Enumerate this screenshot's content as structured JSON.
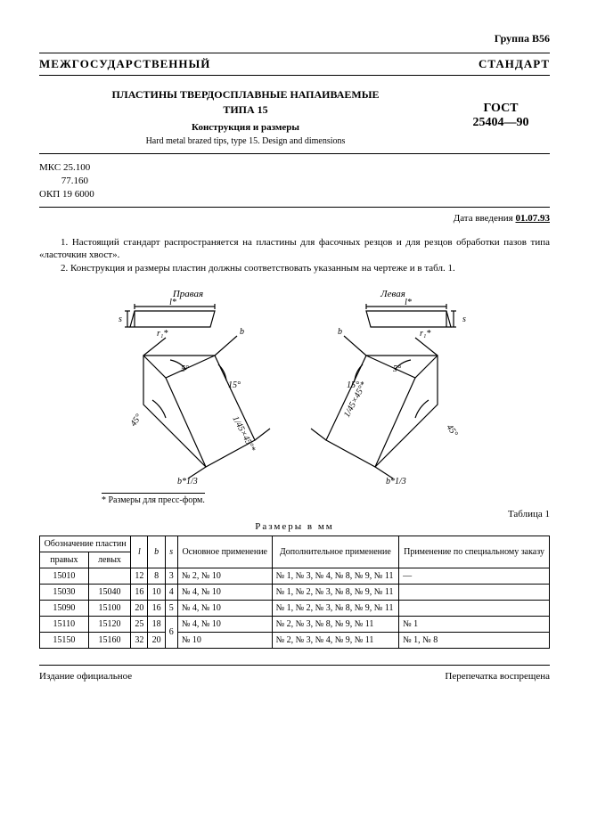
{
  "group_label": "Группа В56",
  "banner": "МЕЖГОСУДАРСТВЕННЫЙ СТАНДАРТ",
  "header": {
    "title_main": "ПЛАСТИНЫ ТВЕРДОСПЛАВНЫЕ НАПАИВАЕМЫЕ",
    "title_type": "ТИПА 15",
    "subtitle_ru": "Конструкция и размеры",
    "subtitle_en": "Hard metal brazed tips, type 15. Design and dimensions",
    "gost_label": "ГОСТ",
    "gost_number": "25404—90"
  },
  "codes": {
    "mks_label": "МКС",
    "mks1": "25.100",
    "mks2": "77.160",
    "okp_label": "ОКП",
    "okp": "19 6000"
  },
  "intro_date": {
    "prefix": "Дата введения ",
    "date": "01.07.93"
  },
  "body": {
    "p1": "1. Настоящий стандарт распространяется на пластины для фасочных резцов и для резцов обработки пазов типа «ласточкин хвост».",
    "p2": "2. Конструкция и размеры пластин должны соответствовать указанным на чертеже и в табл. 1."
  },
  "figure": {
    "left_label": "Правая",
    "right_label": "Левая",
    "dims": {
      "l": "l*",
      "s": "s",
      "b": "b",
      "r": "r₁*",
      "ang5": "5°",
      "ang15": "15°",
      "ang45": "45°",
      "chamfer": "1/45×45°*",
      "bslash": "b*1/3"
    },
    "stroke": "#000000",
    "fill": "#ffffff"
  },
  "press_note": "* Размеры для пресс-форм.",
  "table": {
    "label": "Таблица 1",
    "caption": "Размеры в мм",
    "headers": {
      "designation": "Обозначение пластин",
      "right": "правых",
      "left": "левых",
      "l": "l",
      "b": "b",
      "s": "s",
      "main_use": "Основное применение",
      "add_use": "Дополнительное применение",
      "special": "Применение по специальному заказу"
    },
    "rows": [
      {
        "right": "15010",
        "left": "",
        "l": "12",
        "b": "8",
        "s": "3",
        "main": "№ 2, № 10",
        "add": "№ 1, № 3, № 4, № 8, № 9, № 11",
        "spec": "—"
      },
      {
        "right": "15030",
        "left": "15040",
        "l": "16",
        "b": "10",
        "s": "4",
        "main": "№ 4, № 10",
        "add": "№ 1, № 2, № 3, № 8, № 9, № 11",
        "spec": ""
      },
      {
        "right": "15090",
        "left": "15100",
        "l": "20",
        "b": "16",
        "s": "5",
        "main": "№ 4, № 10",
        "add": "№ 1, № 2, № 3, № 8, № 9, № 11",
        "spec": ""
      },
      {
        "right": "15110",
        "left": "15120",
        "l": "25",
        "b": "18",
        "s": "6",
        "s_rowspan": 2,
        "main": "№ 4, № 10",
        "add": "№ 2, № 3, № 8, № 9, № 11",
        "spec": "№ 1"
      },
      {
        "right": "15150",
        "left": "15160",
        "l": "32",
        "b": "20",
        "main": "№ 10",
        "add": "№ 2, № 3, № 4, № 9, № 11",
        "spec": "№ 1, № 8"
      }
    ]
  },
  "footer": {
    "left": "Издание официальное",
    "right": "Перепечатка воспрещена"
  }
}
